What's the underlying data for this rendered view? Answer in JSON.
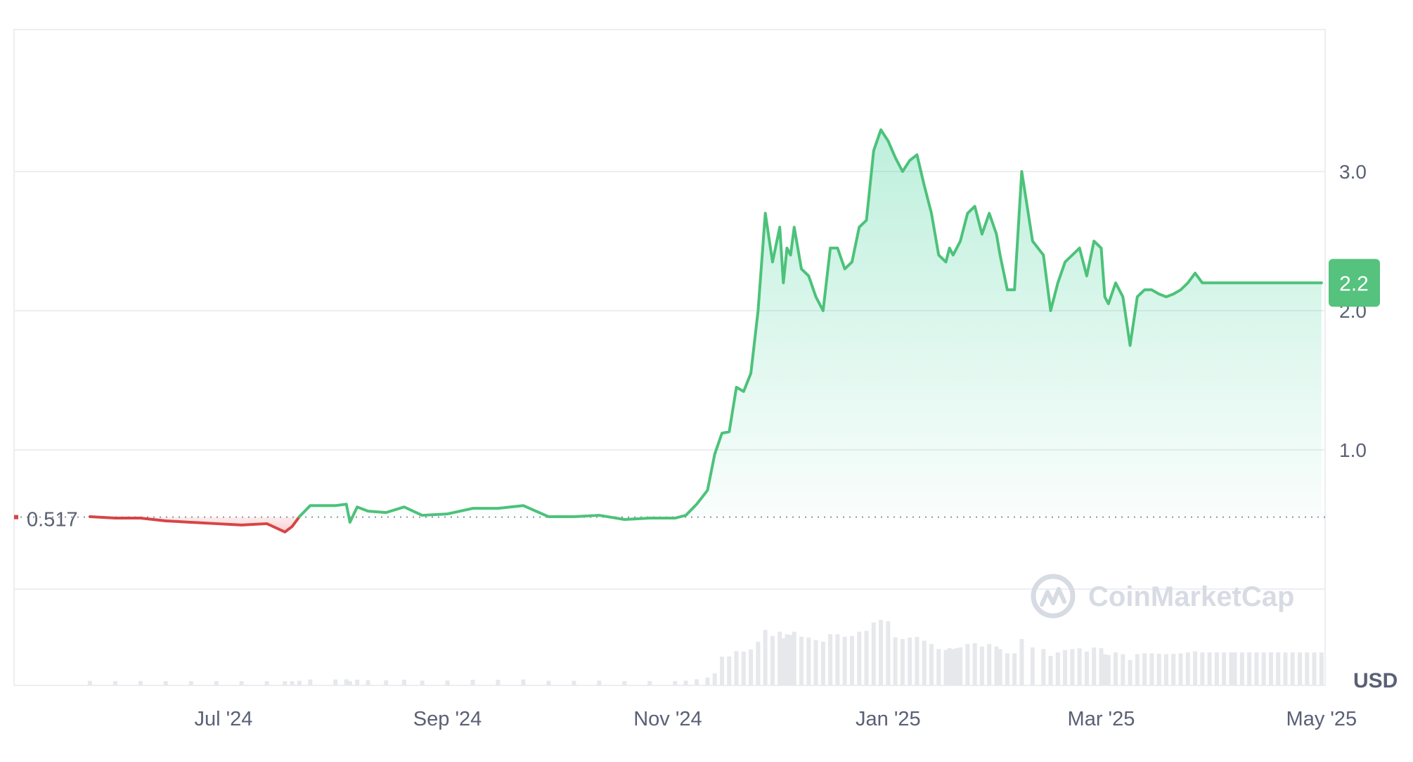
{
  "chart_data": {
    "type": "area",
    "title": "",
    "xlabel": "",
    "ylabel": "",
    "currency_label": "USD",
    "brand": {
      "name": "CoinMarketCap",
      "icon": "coinmarketcap-logo-icon"
    },
    "x_ticks": [
      "Jul '24",
      "Sep '24",
      "Nov '24",
      "Jan '25",
      "Mar '25",
      "May '25"
    ],
    "y_ticks": [
      "1.0",
      "2.0",
      "3.0"
    ],
    "ylim": [
      0,
      4
    ],
    "xlim": [
      "2024-05-04",
      "2025-05-02"
    ],
    "baseline": {
      "value": 0.517,
      "label": "0.517"
    },
    "current_price": {
      "value": 2.2,
      "label": "2.2"
    },
    "colors": {
      "up": "#16c784",
      "up_line": "#4cc27a",
      "down": "#ea3943",
      "down_line": "#d64545",
      "badge": "#55c27e",
      "grid": "#eceef2",
      "axis_text": "#5a6075",
      "volume": "#e6e8ec",
      "watermark": "#d7dbe3"
    },
    "series": [
      {
        "dates": [
          "2024-05-25",
          "2024-06-01",
          "2024-06-08",
          "2024-06-15",
          "2024-06-22",
          "2024-06-29",
          "2024-07-06",
          "2024-07-13",
          "2024-07-18",
          "2024-07-20",
          "2024-07-22",
          "2024-07-25",
          "2024-08-01",
          "2024-08-04",
          "2024-08-05",
          "2024-08-07",
          "2024-08-10",
          "2024-08-15",
          "2024-08-20",
          "2024-08-25",
          "2024-09-01",
          "2024-09-08",
          "2024-09-15",
          "2024-09-22",
          "2024-09-29",
          "2024-10-06",
          "2024-10-13",
          "2024-10-20",
          "2024-10-27",
          "2024-11-03",
          "2024-11-06",
          "2024-11-09",
          "2024-11-12",
          "2024-11-14",
          "2024-11-16",
          "2024-11-18",
          "2024-11-20",
          "2024-11-22",
          "2024-11-24",
          "2024-11-26",
          "2024-11-28",
          "2024-11-30",
          "2024-12-02",
          "2024-12-03",
          "2024-12-04",
          "2024-12-05",
          "2024-12-06",
          "2024-12-08",
          "2024-12-10",
          "2024-12-12",
          "2024-12-14",
          "2024-12-16",
          "2024-12-18",
          "2024-12-20",
          "2024-12-22",
          "2024-12-24",
          "2024-12-26",
          "2024-12-28",
          "2024-12-30",
          "2025-01-01",
          "2025-01-03",
          "2025-01-05",
          "2025-01-07",
          "2025-01-09",
          "2025-01-11",
          "2025-01-13",
          "2025-01-15",
          "2025-01-17",
          "2025-01-18",
          "2025-01-19",
          "2025-01-20",
          "2025-01-21",
          "2025-01-23",
          "2025-01-25",
          "2025-01-27",
          "2025-01-29",
          "2025-01-31",
          "2025-02-01",
          "2025-02-03",
          "2025-02-05",
          "2025-02-07",
          "2025-02-10",
          "2025-02-13",
          "2025-02-15",
          "2025-02-17",
          "2025-02-19",
          "2025-02-21",
          "2025-02-23",
          "2025-02-25",
          "2025-02-27",
          "2025-03-01",
          "2025-03-02",
          "2025-03-03",
          "2025-03-05",
          "2025-03-07",
          "2025-03-09",
          "2025-03-11",
          "2025-03-13",
          "2025-03-15",
          "2025-03-17",
          "2025-03-19",
          "2025-03-21",
          "2025-03-23",
          "2025-03-25",
          "2025-03-27",
          "2025-03-29",
          "2025-03-31",
          "2025-04-02",
          "2025-04-04",
          "2025-04-06",
          "2025-04-07",
          "2025-04-09",
          "2025-04-11",
          "2025-04-13",
          "2025-04-15",
          "2025-04-17",
          "2025-04-19",
          "2025-04-21",
          "2025-04-23",
          "2025-04-25",
          "2025-04-27",
          "2025-04-29",
          "2025-05-01"
        ],
        "values": [
          0.52,
          0.51,
          0.51,
          0.49,
          0.48,
          0.47,
          0.46,
          0.47,
          0.41,
          0.45,
          0.52,
          0.6,
          0.6,
          0.61,
          0.48,
          0.59,
          0.56,
          0.55,
          0.59,
          0.53,
          0.54,
          0.58,
          0.58,
          0.6,
          0.52,
          0.52,
          0.53,
          0.5,
          0.51,
          0.51,
          0.53,
          0.61,
          0.71,
          0.97,
          1.12,
          1.13,
          1.45,
          1.42,
          1.55,
          2.0,
          2.7,
          2.35,
          2.6,
          2.2,
          2.45,
          2.4,
          2.6,
          2.3,
          2.25,
          2.1,
          2.0,
          2.45,
          2.45,
          2.3,
          2.35,
          2.6,
          2.65,
          3.15,
          3.3,
          3.22,
          3.1,
          3.0,
          3.08,
          3.12,
          2.9,
          2.7,
          2.4,
          2.35,
          2.45,
          2.4,
          2.45,
          2.5,
          2.7,
          2.75,
          2.55,
          2.7,
          2.55,
          2.4,
          2.15,
          2.15,
          3.0,
          2.5,
          2.4,
          2.0,
          2.2,
          2.35,
          2.4,
          2.45,
          2.25,
          2.5,
          2.45,
          2.1,
          2.05,
          2.2,
          2.1,
          1.75,
          2.1,
          2.15,
          2.15,
          2.12,
          2.1,
          2.12,
          2.15,
          2.2,
          2.27,
          2.2,
          2.2,
          2.2,
          2.2,
          2.2,
          2.2,
          2.2,
          2.2,
          2.2,
          2.2,
          2.2,
          2.2,
          2.2,
          2.2,
          2.2,
          2.2,
          2.2,
          2.2
        ]
      }
    ]
  }
}
